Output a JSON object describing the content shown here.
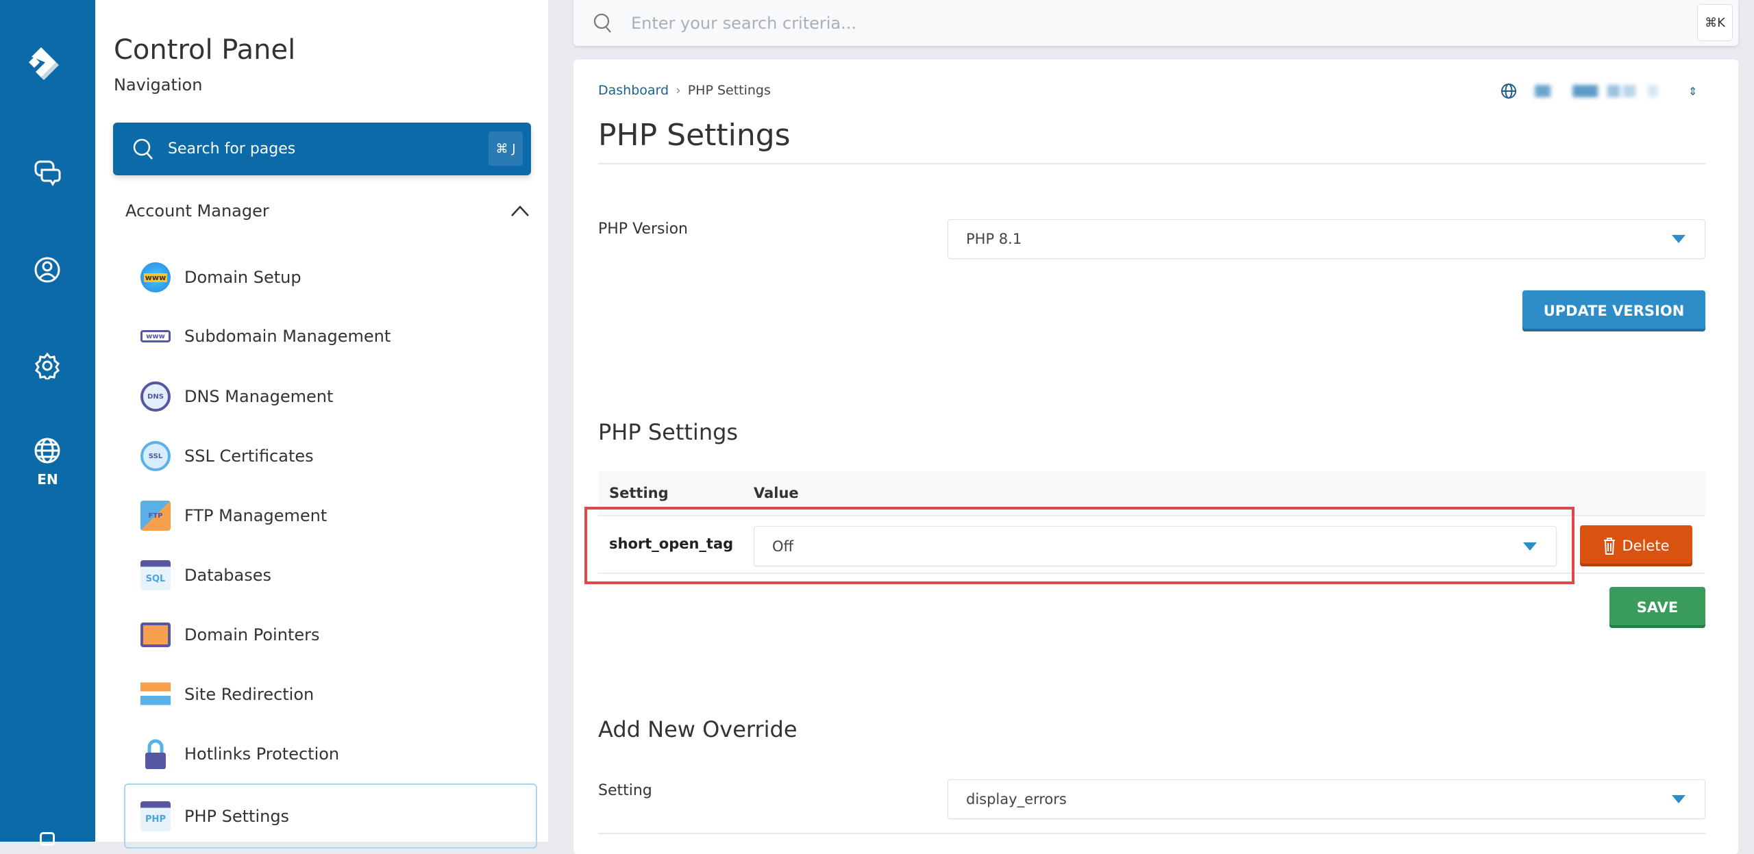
{
  "rail": {
    "language": "EN",
    "icons": [
      "logo-icon",
      "chat-icon",
      "user-icon",
      "gear-icon",
      "globe-icon"
    ]
  },
  "nav": {
    "title": "Control Panel",
    "subtitle": "Navigation",
    "search_placeholder": "Search for pages",
    "search_shortcut": "⌘ J",
    "section": "Account Manager",
    "items": [
      {
        "label": "Domain Setup",
        "icon": "www-globe-icon"
      },
      {
        "label": "Subdomain Management",
        "icon": "subdomain-icon"
      },
      {
        "label": "DNS Management",
        "icon": "dns-icon"
      },
      {
        "label": "SSL Certificates",
        "icon": "ssl-badge-icon"
      },
      {
        "label": "FTP Management",
        "icon": "ftp-folder-icon"
      },
      {
        "label": "Databases",
        "icon": "sql-icon"
      },
      {
        "label": "Domain Pointers",
        "icon": "monitor-icon"
      },
      {
        "label": "Site Redirection",
        "icon": "signpost-icon"
      },
      {
        "label": "Hotlinks Protection",
        "icon": "lock-icon"
      },
      {
        "label": "PHP Settings",
        "icon": "php-icon",
        "active": true
      }
    ]
  },
  "topbar": {
    "search_placeholder": "Enter your search criteria...",
    "shortcut": "⌘K"
  },
  "main": {
    "breadcrumb": [
      "Dashboard",
      "PHP Settings"
    ],
    "title": "PHP Settings",
    "php_version_label": "PHP Version",
    "php_version_value": "PHP 8.1",
    "update_button": "UPDATE VERSION",
    "settings_heading": "PHP Settings",
    "table": {
      "headers": [
        "Setting",
        "Value"
      ],
      "rows": [
        {
          "setting": "short_open_tag",
          "value": "Off",
          "delete": "Delete"
        }
      ]
    },
    "save_button": "SAVE",
    "override_heading": "Add New Override",
    "override_label": "Setting",
    "override_value": "display_errors"
  },
  "colors": {
    "brand": "#0d6aa8",
    "update": "#2c8dc8",
    "delete": "#d9520f",
    "save": "#3a9c5c",
    "highlight": "#e04848"
  }
}
